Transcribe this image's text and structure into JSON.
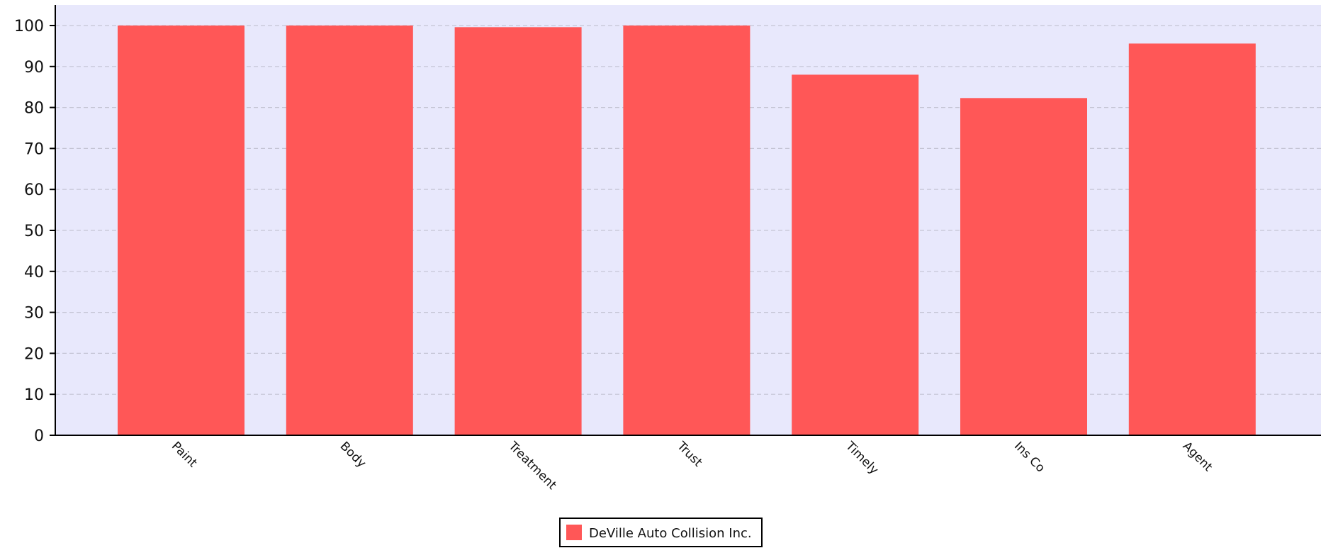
{
  "chart_data": {
    "type": "bar",
    "categories": [
      "Paint",
      "Body",
      "Treatment",
      "Trust",
      "Timely",
      "Ins Co",
      "Agent"
    ],
    "series": [
      {
        "name": "DeVille Auto Collision Inc.",
        "color": "#ff5757",
        "values": [
          100,
          100,
          99.6,
          100,
          88,
          82.3,
          95.6
        ]
      }
    ],
    "ylim": [
      0,
      105
    ],
    "yticks": [
      0,
      10,
      20,
      30,
      40,
      50,
      60,
      70,
      80,
      90,
      100
    ],
    "grid": true,
    "plot_background": "#e8e8fc",
    "legend_position": "bottom-center"
  }
}
